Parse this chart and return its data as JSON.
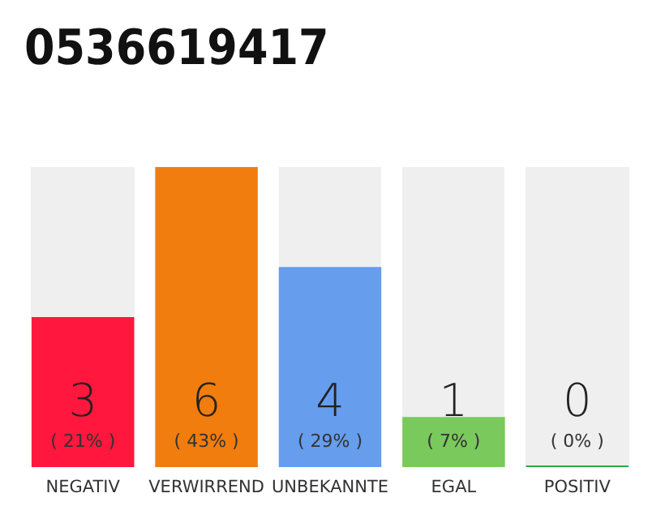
{
  "chart_data": {
    "type": "bar",
    "title": "0536619417",
    "categories": [
      "NEGATIV",
      "VERWIRREND",
      "UNBEKANNTE",
      "EGAL",
      "POSITIV"
    ],
    "values": [
      3,
      6,
      4,
      1,
      0
    ],
    "colors": [
      "#ff173d",
      "#f07d0d",
      "#669ded",
      "#7ac95c",
      "#2aa84a"
    ],
    "value_labels": [
      "3\n( 21% )",
      "6\n( 43% )",
      "4\n( 29% )",
      "1\n( 7% )",
      "0\n( 0% )"
    ],
    "ylim": [
      0,
      6
    ],
    "tick_labels": "x"
  }
}
